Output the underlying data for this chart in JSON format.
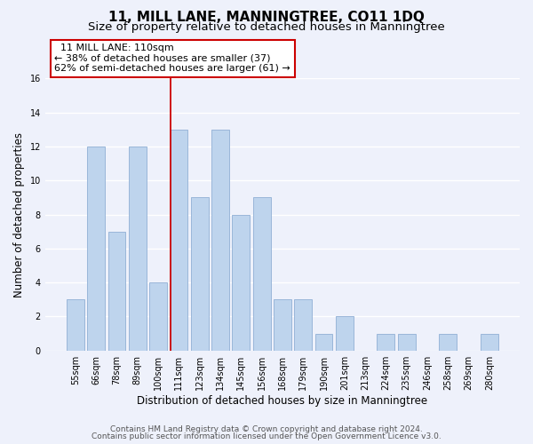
{
  "title": "11, MILL LANE, MANNINGTREE, CO11 1DQ",
  "subtitle": "Size of property relative to detached houses in Manningtree",
  "xlabel": "Distribution of detached houses by size in Manningtree",
  "ylabel": "Number of detached properties",
  "bin_labels": [
    "55sqm",
    "66sqm",
    "78sqm",
    "89sqm",
    "100sqm",
    "111sqm",
    "123sqm",
    "134sqm",
    "145sqm",
    "156sqm",
    "168sqm",
    "179sqm",
    "190sqm",
    "201sqm",
    "213sqm",
    "224sqm",
    "235sqm",
    "246sqm",
    "258sqm",
    "269sqm",
    "280sqm"
  ],
  "bar_heights": [
    3,
    12,
    7,
    12,
    4,
    13,
    9,
    13,
    8,
    9,
    3,
    3,
    1,
    2,
    0,
    1,
    1,
    0,
    1,
    0,
    1
  ],
  "bar_color": "#bed4ed",
  "bar_edge_color": "#9ab6d9",
  "highlight_index": 5,
  "highlight_line_color": "#cc0000",
  "annotation_box_text": "  11 MILL LANE: 110sqm\n← 38% of detached houses are smaller (37)\n62% of semi-detached houses are larger (61) →",
  "annotation_box_edge_color": "#cc0000",
  "ylim": [
    0,
    16
  ],
  "yticks": [
    0,
    2,
    4,
    6,
    8,
    10,
    12,
    14,
    16
  ],
  "footer_line1": "Contains HM Land Registry data © Crown copyright and database right 2024.",
  "footer_line2": "Contains public sector information licensed under the Open Government Licence v3.0.",
  "background_color": "#eef1fb",
  "grid_color": "#ffffff",
  "title_fontsize": 11,
  "subtitle_fontsize": 9.5,
  "axis_label_fontsize": 8.5,
  "tick_fontsize": 7,
  "footer_fontsize": 6.5,
  "annotation_fontsize": 8
}
